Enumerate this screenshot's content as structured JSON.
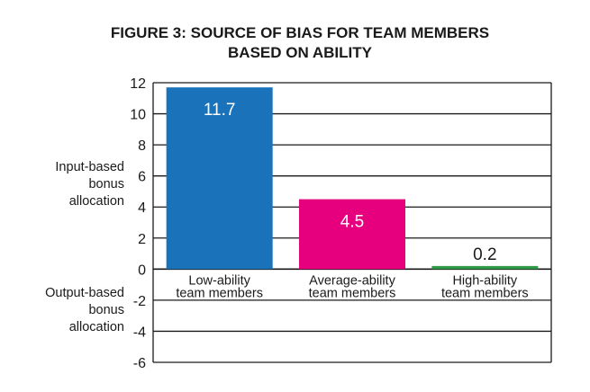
{
  "chart_data": {
    "type": "bar",
    "title_lines": [
      "FIGURE 3: SOURCE OF BIAS FOR TEAM MEMBERS",
      "BASED ON ABILITY"
    ],
    "categories": [
      [
        "Low-ability",
        "team members"
      ],
      [
        "Average-ability",
        "team members"
      ],
      [
        "High-ability",
        "team members"
      ]
    ],
    "values": [
      11.7,
      4.5,
      0.2
    ],
    "data_labels": [
      "11.7",
      "4.5",
      "0.2"
    ],
    "bar_colors": [
      "#1a72ba",
      "#e6007e",
      "#2e9a45"
    ],
    "data_label_colors": [
      "#ffffff",
      "#ffffff",
      "#1a1a1a"
    ],
    "ylim": [
      -6,
      12
    ],
    "yticks": [
      12,
      10,
      8,
      6,
      4,
      2,
      0,
      -2,
      -4,
      -6
    ],
    "ytick_labels": [
      "12",
      "10",
      "8",
      "6",
      "4",
      "2",
      "0",
      "-2",
      "-4",
      "-6"
    ],
    "positive_axis_label": [
      "Input-based",
      "bonus",
      "allocation"
    ],
    "negative_axis_label": [
      "Output-based",
      "bonus",
      "allocation"
    ],
    "grid": true
  }
}
